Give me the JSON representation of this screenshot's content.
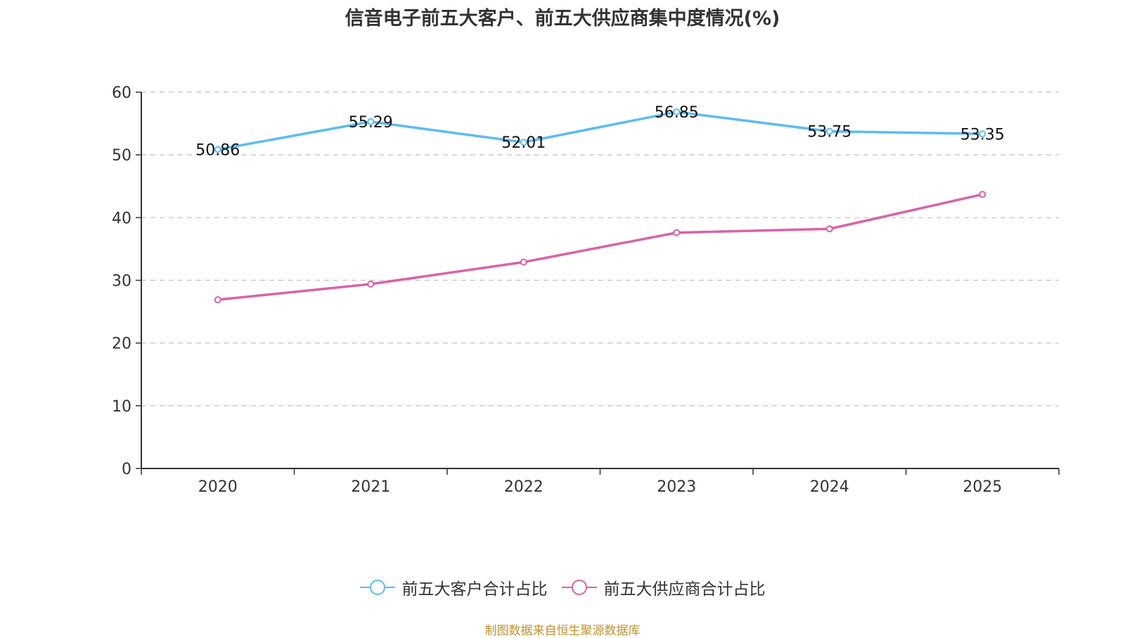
{
  "chart_data": {
    "type": "line",
    "title": "信音电子前五大客户、前五大供应商集中度情况(%)",
    "xlabel": "",
    "ylabel": "",
    "categories": [
      "2020",
      "2021",
      "2022",
      "2023",
      "2024",
      "2025"
    ],
    "ylim": [
      0,
      60
    ],
    "yticks": [
      0,
      10,
      20,
      30,
      40,
      50,
      60
    ],
    "grid": true,
    "legend_position": "bottom",
    "series": [
      {
        "name": "前五大客户合计占比",
        "color": "#5bbcf2",
        "values": [
          50.86,
          55.29,
          52.01,
          56.85,
          53.75,
          53.35
        ],
        "labels": [
          "50.86",
          "55.29",
          "52.01",
          "56.85",
          "53.75",
          "53.35"
        ],
        "show_labels": true
      },
      {
        "name": "前五大供应商合计占比",
        "color": "#d962a8",
        "values": [
          26.9,
          29.4,
          32.9,
          37.6,
          38.2,
          43.7
        ],
        "show_labels": false
      }
    ]
  },
  "source_note": "制图数据来自恒生聚源数据库"
}
